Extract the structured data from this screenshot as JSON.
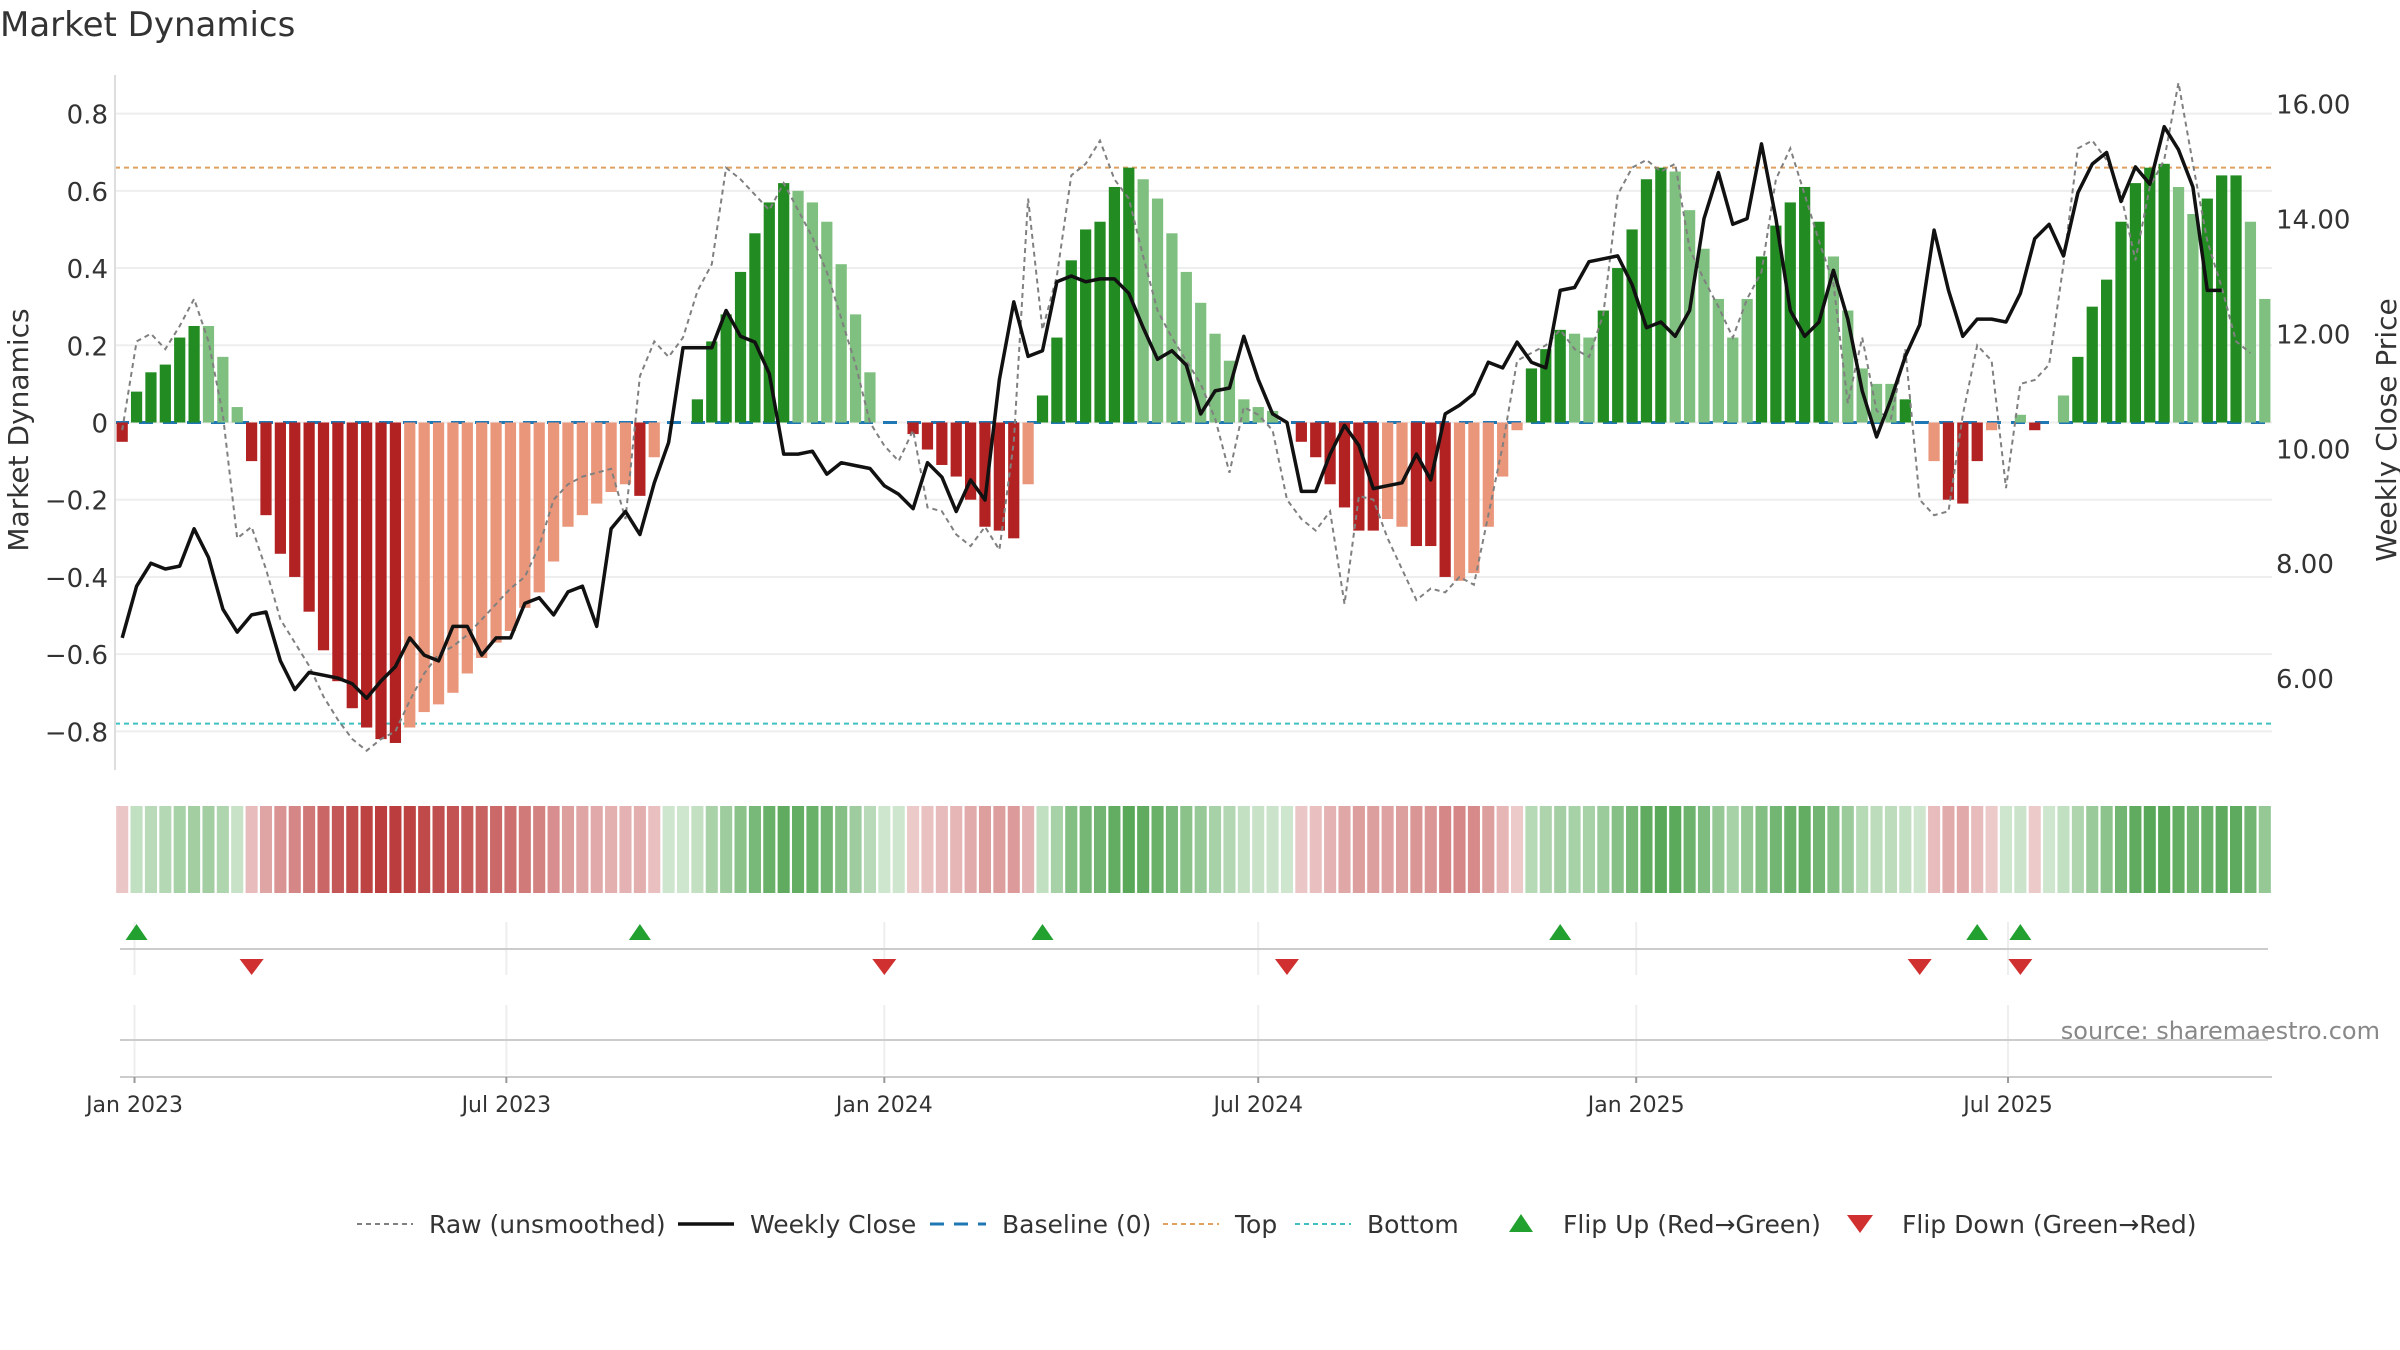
{
  "title": "Market Dynamics",
  "source": "source: sharemaestro.com",
  "colors": {
    "strong_green": "#228b22",
    "light_green": "#7fbf7f",
    "strong_red": "#b22222",
    "light_red": "#e9967a",
    "raw": "#808080",
    "close": "#111111",
    "baseline": "#1f77b4",
    "top": "#e0a060",
    "bottom": "#40c0c0",
    "flip_up": "#22a030",
    "flip_down": "#d03030"
  },
  "legend": [
    {
      "key": "raw",
      "label": "Raw (unsmoothed)"
    },
    {
      "key": "close",
      "label": "Weekly Close"
    },
    {
      "key": "baseline",
      "label": "Baseline (0)"
    },
    {
      "key": "top",
      "label": "Top"
    },
    {
      "key": "bottom",
      "label": "Bottom"
    },
    {
      "key": "flip_up",
      "label": "Flip Up (Red→Green)"
    },
    {
      "key": "flip_down",
      "label": "Flip Down (Green→Red)"
    }
  ],
  "chart_data": {
    "type": "bar",
    "title": "Market Dynamics",
    "ylabel": "Market Dynamics",
    "y2label": "Weekly Close Price",
    "ylim": [
      -0.9,
      0.9
    ],
    "y2lim": [
      4.4,
      16.5
    ],
    "yticks": [
      "0.8",
      "0.6",
      "0.4",
      "0.2",
      "0",
      "−0.2",
      "−0.4",
      "−0.6",
      "−0.8"
    ],
    "y2ticks": [
      "16.00",
      "14.00",
      "12.00",
      "10.00",
      "8.00",
      "6.00"
    ],
    "xticks": [
      "Jan 2023",
      "Jul 2023",
      "Jan 2024",
      "Jul 2024",
      "Jan 2025",
      "Jul 2025"
    ],
    "top_level": 0.66,
    "bottom_level": -0.78,
    "grid": true,
    "legend_position": "bottom",
    "week_start": "2022-12-26",
    "dynamics": [
      -0.05,
      0.08,
      0.13,
      0.15,
      0.22,
      0.25,
      0.25,
      0.17,
      0.04,
      -0.1,
      -0.24,
      -0.34,
      -0.4,
      -0.49,
      -0.59,
      -0.67,
      -0.74,
      -0.79,
      -0.82,
      -0.83,
      -0.79,
      -0.75,
      -0.73,
      -0.7,
      -0.65,
      -0.61,
      -0.57,
      -0.54,
      -0.48,
      -0.44,
      -0.36,
      -0.27,
      -0.24,
      -0.21,
      -0.18,
      -0.16,
      -0.19,
      -0.09,
      0,
      0,
      0.06,
      0.21,
      0.28,
      0.39,
      0.49,
      0.57,
      0.62,
      0.6,
      0.57,
      0.52,
      0.41,
      0.28,
      0.13,
      0,
      0,
      -0.03,
      -0.07,
      -0.11,
      -0.14,
      -0.2,
      -0.27,
      -0.28,
      -0.3,
      -0.16,
      0.07,
      0.22,
      0.42,
      0.5,
      0.52,
      0.61,
      0.66,
      0.63,
      0.58,
      0.49,
      0.39,
      0.31,
      0.23,
      0.16,
      0.06,
      0.04,
      0.03,
      0,
      -0.05,
      -0.09,
      -0.16,
      -0.22,
      -0.28,
      -0.28,
      -0.25,
      -0.27,
      -0.32,
      -0.32,
      -0.4,
      -0.41,
      -0.39,
      -0.27,
      -0.14,
      -0.02,
      0.14,
      0.19,
      0.24,
      0.23,
      0.22,
      0.29,
      0.4,
      0.5,
      0.63,
      0.66,
      0.65,
      0.55,
      0.45,
      0.32,
      0.22,
      0.32,
      0.43,
      0.51,
      0.57,
      0.61,
      0.52,
      0.43,
      0.29,
      0.14,
      0.1,
      0.1,
      0.06,
      0,
      -0.1,
      -0.2,
      -0.21,
      -0.1,
      -0.02,
      0,
      0.02,
      -0.02,
      0,
      0.07,
      0.17,
      0.3,
      0.37,
      0.52,
      0.62,
      0.66,
      0.67,
      0.61,
      0.54,
      0.58,
      0.64,
      0.64,
      0.52,
      0.32
    ],
    "strength": [
      "s",
      "s",
      "s",
      "s",
      "s",
      "s",
      "w",
      "w",
      "w",
      "s",
      "s",
      "s",
      "s",
      "s",
      "s",
      "s",
      "s",
      "s",
      "s",
      "s",
      "w",
      "w",
      "w",
      "w",
      "w",
      "w",
      "w",
      "w",
      "w",
      "w",
      "w",
      "w",
      "w",
      "w",
      "w",
      "w",
      "s",
      "w",
      "w",
      "w",
      "s",
      "s",
      "s",
      "s",
      "s",
      "s",
      "s",
      "w",
      "w",
      "w",
      "w",
      "w",
      "w",
      "w",
      "w",
      "s",
      "s",
      "s",
      "s",
      "s",
      "s",
      "s",
      "s",
      "w",
      "s",
      "s",
      "s",
      "s",
      "s",
      "s",
      "s",
      "w",
      "w",
      "w",
      "w",
      "w",
      "w",
      "w",
      "w",
      "w",
      "w",
      "w",
      "s",
      "s",
      "s",
      "s",
      "s",
      "s",
      "w",
      "w",
      "s",
      "s",
      "s",
      "w",
      "w",
      "w",
      "w",
      "w",
      "s",
      "s",
      "s",
      "w",
      "w",
      "s",
      "s",
      "s",
      "s",
      "s",
      "w",
      "w",
      "w",
      "w",
      "w",
      "w",
      "s",
      "s",
      "s",
      "s",
      "s",
      "w",
      "w",
      "w",
      "w",
      "w",
      "s",
      "w",
      "w",
      "s",
      "s",
      "s",
      "w",
      "w",
      "w",
      "s",
      "s",
      "w",
      "s",
      "s",
      "s",
      "s",
      "s",
      "s",
      "s",
      "w",
      "w",
      "s",
      "s",
      "s",
      "w",
      "w"
    ],
    "raw": [
      -0.02,
      0.21,
      0.23,
      0.19,
      0.25,
      0.32,
      0.21,
      0.02,
      -0.3,
      -0.27,
      -0.38,
      -0.51,
      -0.57,
      -0.63,
      -0.71,
      -0.77,
      -0.82,
      -0.85,
      -0.82,
      -0.8,
      -0.72,
      -0.65,
      -0.6,
      -0.58,
      -0.55,
      -0.51,
      -0.47,
      -0.43,
      -0.4,
      -0.32,
      -0.2,
      -0.16,
      -0.14,
      -0.13,
      -0.12,
      -0.25,
      0.12,
      0.21,
      0.17,
      0.22,
      0.34,
      0.41,
      0.66,
      0.63,
      0.59,
      0.55,
      0.62,
      0.55,
      0.48,
      0.39,
      0.27,
      0.15,
      0,
      -0.06,
      -0.1,
      -0.02,
      -0.22,
      -0.23,
      -0.29,
      -0.32,
      -0.27,
      -0.33,
      -0.05,
      0.58,
      0.24,
      0.38,
      0.64,
      0.67,
      0.73,
      0.63,
      0.58,
      0.43,
      0.29,
      0.22,
      0.16,
      0.1,
      0.01,
      -0.13,
      0.04,
      0.02,
      -0.02,
      -0.2,
      -0.25,
      -0.28,
      -0.23,
      -0.47,
      -0.19,
      -0.2,
      -0.3,
      -0.38,
      -0.46,
      -0.43,
      -0.44,
      -0.4,
      -0.42,
      -0.24,
      -0.06,
      0.16,
      0.18,
      0.2,
      0.24,
      0.19,
      0.17,
      0.28,
      0.59,
      0.66,
      0.68,
      0.65,
      0.67,
      0.45,
      0.37,
      0.3,
      0.22,
      0.32,
      0.39,
      0.63,
      0.71,
      0.59,
      0.47,
      0.36,
      0.05,
      0.22,
      0.03,
      0.01,
      0.19,
      -0.2,
      -0.24,
      -0.23,
      0.02,
      0.2,
      0.16,
      -0.17,
      0.1,
      0.11,
      0.15,
      0.41,
      0.71,
      0.73,
      0.68,
      0.59,
      0.42,
      0.61,
      0.68,
      0.88,
      0.67,
      0.47,
      0.35,
      0.21,
      0.18
    ],
    "close": [
      6.7,
      7.6,
      8.0,
      7.9,
      7.95,
      8.6,
      8.1,
      7.2,
      6.8,
      7.1,
      7.15,
      6.3,
      5.8,
      6.1,
      6.05,
      6.0,
      5.9,
      5.65,
      5.95,
      6.2,
      6.7,
      6.4,
      6.3,
      6.9,
      6.9,
      6.4,
      6.7,
      6.7,
      7.3,
      7.4,
      7.1,
      7.5,
      7.6,
      6.9,
      8.6,
      8.9,
      8.5,
      9.4,
      10.1,
      11.75,
      11.75,
      11.75,
      12.4,
      11.95,
      11.85,
      11.3,
      9.9,
      9.9,
      9.95,
      9.55,
      9.75,
      9.7,
      9.65,
      9.35,
      9.2,
      8.95,
      9.75,
      9.5,
      8.9,
      9.45,
      9.1,
      11.2,
      12.55,
      11.6,
      11.7,
      12.9,
      13.0,
      12.9,
      12.95,
      12.95,
      12.7,
      12.1,
      11.55,
      11.7,
      11.45,
      10.6,
      11.0,
      11.05,
      11.95,
      11.2,
      10.6,
      10.45,
      9.25,
      9.25,
      9.9,
      10.4,
      10.05,
      9.3,
      9.35,
      9.4,
      9.9,
      9.45,
      10.6,
      10.75,
      10.95,
      11.5,
      11.4,
      11.85,
      11.5,
      11.4,
      12.75,
      12.8,
      13.25,
      13.3,
      13.35,
      12.85,
      12.1,
      12.2,
      11.95,
      12.4,
      14.0,
      14.8,
      13.9,
      14.0,
      15.3,
      14.0,
      12.4,
      11.95,
      12.2,
      13.1,
      12.25,
      11.0,
      10.2,
      10.85,
      11.6,
      12.15,
      13.8,
      12.75,
      11.95,
      12.25,
      12.25,
      12.2,
      12.7,
      13.65,
      13.9,
      13.35,
      14.45,
      14.95,
      15.15,
      14.3,
      14.9,
      14.6,
      15.6,
      15.2,
      14.55,
      12.75,
      12.75
    ],
    "flips_up": [
      1,
      36,
      64,
      100,
      129,
      132
    ],
    "flips_down": [
      9,
      53,
      81,
      125,
      132
    ]
  }
}
